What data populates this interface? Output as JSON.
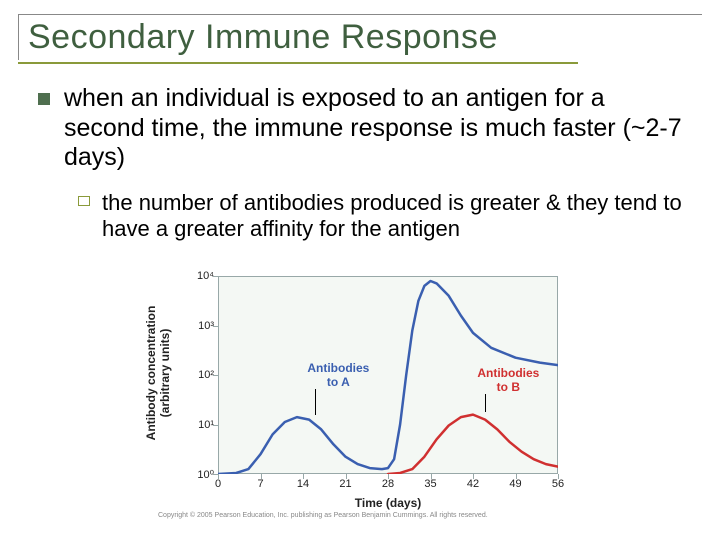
{
  "title": "Secondary Immune Response",
  "title_color": "#3f5f3f",
  "underline_color": "#8a9a3a",
  "underline_width": 560,
  "bullet": {
    "marker_color": "#4f6f4f",
    "text": "when an individual is exposed to an antigen for a second time, the immune response is much faster (~2-7 days)"
  },
  "sub_bullet": {
    "marker_color": "#8a9a3a",
    "text": "the number of antibodies produced is greater & they tend to have a greater affinity for the antigen"
  },
  "chart": {
    "type": "line",
    "plot_bg": "#f4f8f4",
    "axis_color": "#98a8a8",
    "ylabel": "Antibody concentration\n(arbitrary units)",
    "xlabel": "Time (days)",
    "xlim": [
      0,
      56
    ],
    "xtick_step": 7,
    "xticks": [
      0,
      7,
      14,
      21,
      28,
      35,
      42,
      49,
      56
    ],
    "ylim_exp": [
      0,
      4
    ],
    "yticks": [
      "10⁰",
      "10¹",
      "10²",
      "10³",
      "10⁴"
    ],
    "line_width": 2.5,
    "series": [
      {
        "name": "Antibodies to A",
        "color": "#3a5fb0",
        "label": "Antibodies\nto A",
        "label_xy": [
          19,
          2.0
        ],
        "leader_to_xy": [
          16,
          1.2
        ],
        "points": [
          [
            0,
            0
          ],
          [
            3,
            0.02
          ],
          [
            5,
            0.1
          ],
          [
            7,
            0.4
          ],
          [
            9,
            0.8
          ],
          [
            11,
            1.05
          ],
          [
            13,
            1.15
          ],
          [
            15,
            1.1
          ],
          [
            17,
            0.9
          ],
          [
            19,
            0.6
          ],
          [
            21,
            0.35
          ],
          [
            23,
            0.2
          ],
          [
            25,
            0.12
          ],
          [
            27,
            0.1
          ],
          [
            28,
            0.12
          ],
          [
            29,
            0.3
          ],
          [
            30,
            1.0
          ],
          [
            31,
            2.0
          ],
          [
            32,
            2.9
          ],
          [
            33,
            3.5
          ],
          [
            34,
            3.8
          ],
          [
            35,
            3.9
          ],
          [
            36,
            3.85
          ],
          [
            38,
            3.6
          ],
          [
            40,
            3.2
          ],
          [
            42,
            2.85
          ],
          [
            45,
            2.55
          ],
          [
            49,
            2.35
          ],
          [
            53,
            2.25
          ],
          [
            56,
            2.2
          ]
        ]
      },
      {
        "name": "Antibodies to B",
        "color": "#d03030",
        "label": "Antibodies\nto B",
        "label_xy": [
          47,
          1.9
        ],
        "leader_to_xy": [
          44,
          1.25
        ],
        "points": [
          [
            28,
            0
          ],
          [
            30,
            0.02
          ],
          [
            32,
            0.1
          ],
          [
            34,
            0.35
          ],
          [
            36,
            0.7
          ],
          [
            38,
            0.98
          ],
          [
            40,
            1.15
          ],
          [
            42,
            1.2
          ],
          [
            44,
            1.1
          ],
          [
            46,
            0.9
          ],
          [
            48,
            0.65
          ],
          [
            50,
            0.45
          ],
          [
            52,
            0.3
          ],
          [
            54,
            0.2
          ],
          [
            56,
            0.15
          ]
        ]
      }
    ],
    "copyright": "Copyright © 2005 Pearson Education, Inc. publishing as Pearson Benjamin Cummings. All rights reserved."
  }
}
